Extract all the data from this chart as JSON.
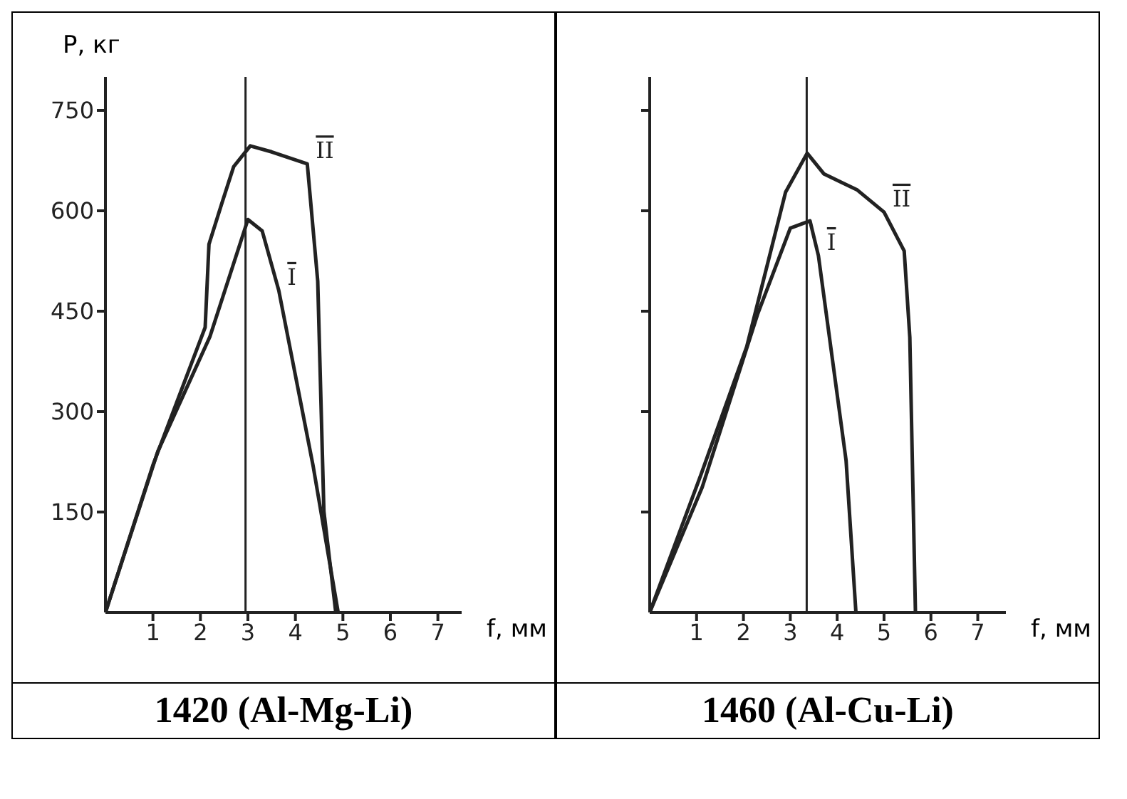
{
  "chart_data": [
    {
      "type": "line",
      "title": "1420 (Al-Mg-Li)",
      "xlabel": "f, мм",
      "ylabel": "P, кг",
      "xlim": [
        0,
        7.5
      ],
      "xticks": [
        1,
        2,
        3,
        4,
        5,
        6,
        7
      ],
      "ylim": [
        0,
        800
      ],
      "yticks": [
        150,
        300,
        450,
        600,
        750
      ],
      "grid": false,
      "legend": false,
      "marker": "none",
      "line_style": "solid",
      "series": [
        {
          "name": "I",
          "color": "#222222",
          "x": [
            0,
            1.1,
            2.2,
            3.0,
            3.3,
            3.65,
            4.37,
            4.9
          ],
          "values": [
            0,
            240,
            412,
            587,
            570,
            481,
            220,
            0
          ]
        },
        {
          "name": "II",
          "color": "#222222",
          "x": [
            0,
            1.0,
            2.1,
            2.18,
            2.45,
            2.7,
            3.05,
            3.5,
            4.25,
            4.47,
            4.6,
            4.85
          ],
          "values": [
            0,
            220,
            426,
            550,
            611,
            666,
            697,
            688,
            670,
            495,
            151,
            0
          ]
        }
      ],
      "ref_lines": [
        {
          "axis": "x",
          "value": 2.95,
          "color": "#222222"
        }
      ]
    },
    {
      "type": "line",
      "title": "1460 (Al-Cu-Li)",
      "xlabel": "f, мм",
      "xlim": [
        0,
        7.6
      ],
      "xticks": [
        1,
        2,
        3,
        4,
        5,
        6,
        7
      ],
      "ylim": [
        0,
        800
      ],
      "yticks": [
        {
          "value": 150,
          "label": null
        },
        {
          "value": 300,
          "label": null
        },
        {
          "value": 450,
          "label": null
        },
        {
          "value": 600,
          "label": null
        },
        {
          "value": 750,
          "label": null
        }
      ],
      "tick_labels": "x",
      "grid": false,
      "legend": false,
      "marker": "none",
      "line_style": "solid",
      "series": [
        {
          "name": "I",
          "color": "#222222",
          "x": [
            0,
            1.12,
            2.3,
            3.0,
            3.42,
            3.6,
            4.19,
            4.4
          ],
          "values": [
            0,
            187,
            445,
            574,
            585,
            533,
            227,
            0
          ]
        },
        {
          "name": "II",
          "color": "#222222",
          "x": [
            0,
            1.1,
            2.07,
            2.9,
            3.36,
            3.72,
            4.43,
            5.0,
            5.43,
            5.55,
            5.67
          ],
          "values": [
            0,
            207,
            397,
            628,
            686,
            655,
            631,
            598,
            540,
            411,
            0
          ]
        }
      ],
      "ref_lines": [
        {
          "axis": "x",
          "value": 3.35,
          "color": "#222222"
        }
      ]
    }
  ]
}
